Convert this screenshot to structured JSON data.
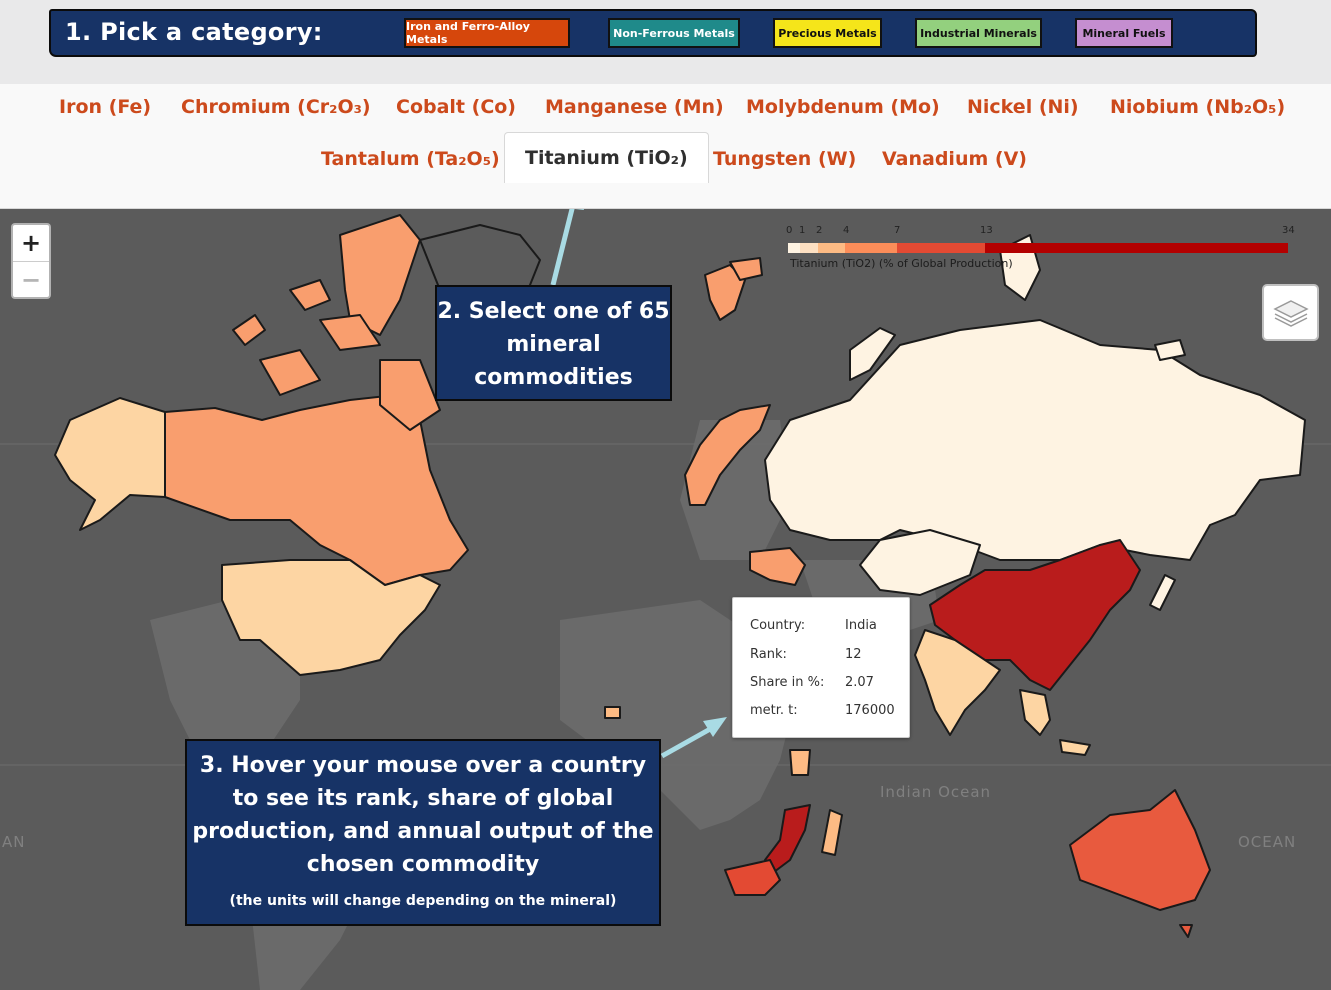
{
  "categories": {
    "prompt": "1.  Pick a category:",
    "buttons": [
      {
        "label": "Iron and Ferro-Alloy Metals",
        "color": "#d6470c",
        "text_color": "#ffffff"
      },
      {
        "label": "Non-Ferrous Metals",
        "color": "#1f8a8a",
        "text_color": "#ffffff"
      },
      {
        "label": "Precious Metals",
        "color": "#f5e51a",
        "text_color": "#111111"
      },
      {
        "label": "Industrial Minerals",
        "color": "#93d07e",
        "text_color": "#111111"
      },
      {
        "label": "Mineral Fuels",
        "color": "#c58ed0",
        "text_color": "#111111"
      }
    ]
  },
  "tabs": [
    {
      "label": "Iron (Fe)"
    },
    {
      "label": "Chromium (Cr₂O₃)"
    },
    {
      "label": "Cobalt (Co)"
    },
    {
      "label": "Manganese (Mn)"
    },
    {
      "label": "Molybdenum (Mo)"
    },
    {
      "label": "Nickel (Ni)"
    },
    {
      "label": "Niobium (Nb₂O₅)"
    },
    {
      "label": "Tantalum (Ta₂O₅)"
    },
    {
      "label": "Titanium (TiO₂)",
      "active": true
    },
    {
      "label": "Tungsten (W)"
    },
    {
      "label": "Vanadium (V)"
    }
  ],
  "legend": {
    "ticks": [
      "0",
      "1",
      "2",
      "4",
      "7",
      "13",
      "34"
    ],
    "caption": "Titanium (TiO2) (% of Global Production)",
    "colors": [
      "#fef3e2",
      "#fde0c2",
      "#fdbb84",
      "#fc8d59",
      "#e34a33",
      "#b30000"
    ]
  },
  "map": {
    "zoom_in": "+",
    "zoom_out": "−",
    "oceans": [
      "Indian Ocean",
      "AN",
      "OCEAN"
    ]
  },
  "tooltip": {
    "rows": [
      {
        "key": "Country:",
        "value": "India"
      },
      {
        "key": "Rank:",
        "value": "12"
      },
      {
        "key": "Share in %:",
        "value": "2.07"
      },
      {
        "key": "metr. t:",
        "value": "176000"
      }
    ]
  },
  "callouts": {
    "step2": "2.  Select one of 65 mineral commodities",
    "step3": "3.  Hover your mouse over a country to see its rank, share of global production, and annual output of the chosen commodity",
    "step3_note": "(the units will change depending on the mineral)"
  },
  "colors": {
    "banner": "#173366",
    "tab_text": "#cc4a1c",
    "arrow": "#a9dbe4",
    "map_background": "#5b5b5b"
  }
}
